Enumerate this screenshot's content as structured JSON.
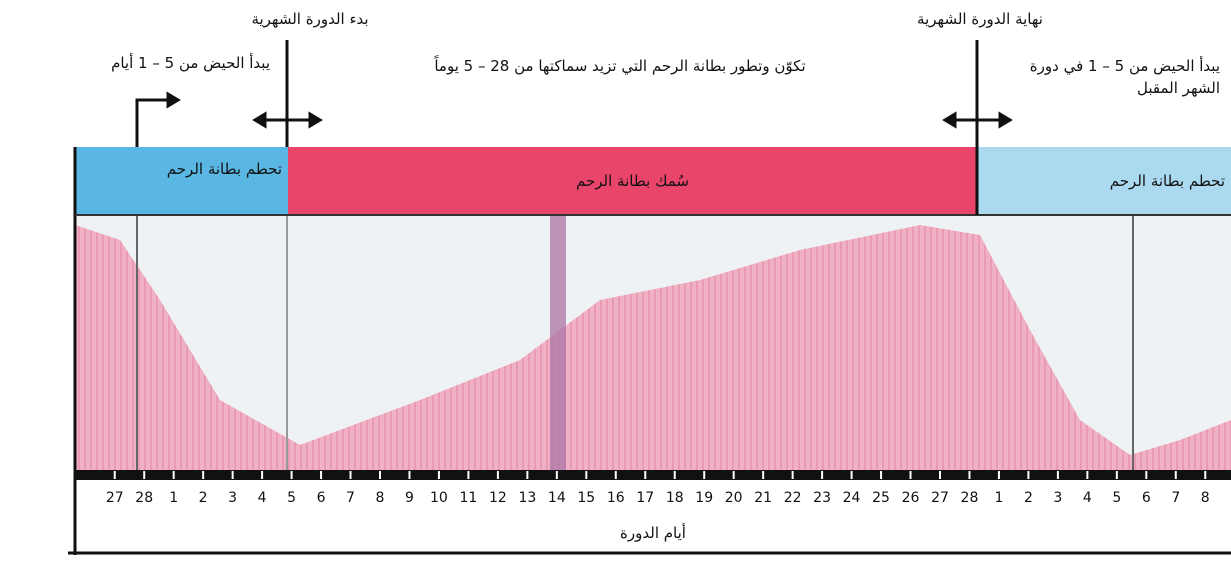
{
  "labels": {
    "start_period": "بدء الدورة الشهرية",
    "end_period": "نهاية الدورة الشهرية",
    "menses_start": "يبدأ الحيض من 5 – 1 أيام",
    "lining_growth": "تكوّن وتطور بطانة الرحم التي تزيد سماكتها من 28 – 5 يوماً",
    "next_menses": "يبدأ الحيض من 5 – 1 في دورة الشهر المقبل",
    "breakdown_left": "تحطم بطانة الرحم",
    "thickening": "سُمك بطانة الرحم",
    "breakdown_right": "تحطم بطانة الرحم",
    "axis_title": "أيام الدورة"
  },
  "days": [
    27,
    28,
    1,
    2,
    3,
    4,
    5,
    6,
    7,
    8,
    9,
    10,
    11,
    12,
    13,
    14,
    15,
    16,
    17,
    18,
    19,
    20,
    21,
    22,
    23,
    24,
    25,
    26,
    27,
    28,
    1,
    2,
    3,
    4,
    5,
    6,
    7,
    8
  ]
}
